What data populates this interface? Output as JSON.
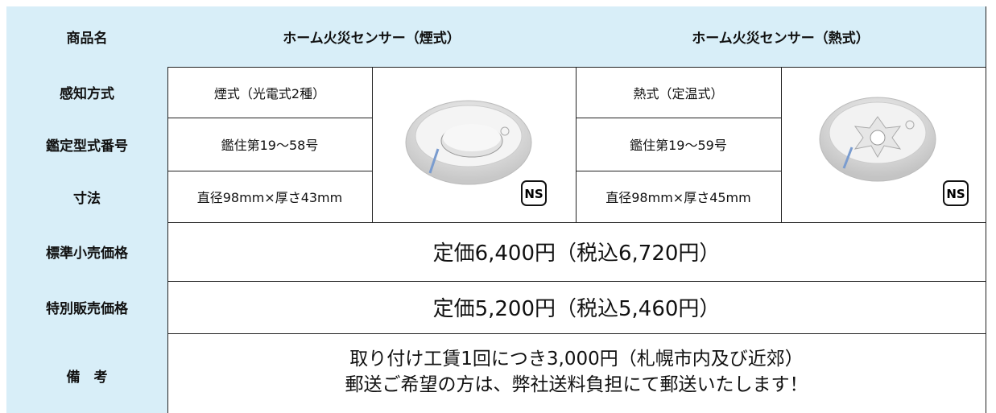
{
  "table": {
    "header": [
      "商品名",
      "ホーム火災センサー（煙式）",
      "ホーム火災センサー（熱式）"
    ],
    "spec_rows": [
      {
        "label": "感知方式",
        "smoke": "煙式（光電式2種）",
        "heat": "熱式（定温式）"
      },
      {
        "label": "鑑定型式番号",
        "smoke": "鑑住第19～58号",
        "heat": "鑑住第19～59号"
      },
      {
        "label": "寸法",
        "smoke": "直径98mm×厚さ43mm",
        "heat": "直径98mm×厚さ45mm"
      }
    ],
    "badge": "NS",
    "price_rows": [
      {
        "label": "標準小売価格",
        "value": "定価6,400円（税込6,720円）"
      },
      {
        "label": "特別販売価格",
        "value": "定価5,200円（税込5,460円）"
      }
    ],
    "remarks": {
      "label": "備　考",
      "lines": [
        "取り付け工賃1回につき3,000円（札幌市内及び近郊）",
        "郵送ご希望の方は、弊社送料負担にて郵送いたします！"
      ]
    }
  }
}
